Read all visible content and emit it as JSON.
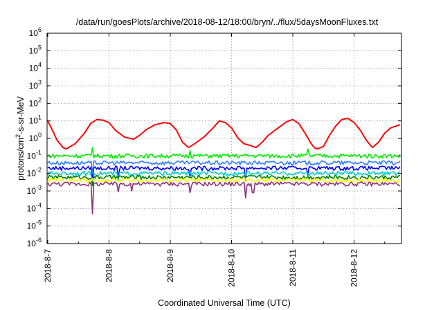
{
  "chart_data": {
    "type": "line",
    "title": "/data/run/goesPlots/archive/2018-08-12/18:00/bryn/../flux/5daysMoonFluxes.txt",
    "xlabel": "Coordinated Universal Time (UTC)",
    "ylabel": "protons/cm2-s-sr-MeV",
    "ylabel_parts": [
      "protons/cm",
      "2",
      "-s-sr-MeV"
    ],
    "y_scale": "log",
    "ylim": [
      1e-06,
      1000000.0
    ],
    "y_tick_exponents": [
      -6,
      -5,
      -4,
      -3,
      -2,
      -1,
      0,
      1,
      2,
      3,
      4,
      5,
      6
    ],
    "y_tick_base": "10",
    "xlim": [
      "2018-08-07",
      "2018-08-12 18:00"
    ],
    "x_tick_labels": [
      "2018-8-7",
      "2018-8-8",
      "2018-8-9",
      "2018-8-10",
      "2018-8-11",
      "2018-8-12"
    ],
    "grid": true,
    "series": [
      {
        "color": "#ff0000",
        "x_days": [
          0.0,
          0.1,
          0.15,
          0.25,
          0.3,
          0.45,
          0.6,
          0.7,
          0.8,
          0.9,
          1.0,
          1.1,
          1.25,
          1.4,
          1.5,
          1.6,
          1.75,
          1.9,
          2.0,
          2.1,
          2.2,
          2.3,
          2.4,
          2.55,
          2.7,
          2.8,
          2.9,
          3.0,
          3.1,
          3.2,
          3.3,
          3.4,
          3.5,
          3.6,
          3.8,
          3.9,
          4.0,
          4.1,
          4.2,
          4.3,
          4.35,
          4.4,
          4.5,
          4.6,
          4.7,
          4.8,
          4.9,
          5.0,
          5.1,
          5.2,
          5.3,
          5.4,
          5.5,
          5.6,
          5.75
        ],
        "values": [
          10,
          2,
          0.8,
          0.3,
          0.25,
          0.5,
          2,
          7,
          12,
          11,
          8,
          3,
          1.2,
          0.9,
          1.5,
          3,
          6,
          8,
          7,
          3,
          0.6,
          0.3,
          0.5,
          1.2,
          4,
          10,
          8,
          4,
          1.1,
          0.5,
          0.4,
          0.3,
          0.6,
          1.5,
          5,
          9,
          12,
          7,
          2,
          0.5,
          0.3,
          0.25,
          0.35,
          1.5,
          5,
          12,
          14,
          8,
          3,
          0.8,
          0.3,
          0.6,
          2,
          4,
          6
        ]
      },
      {
        "color": "#00ee00",
        "level": 0.1,
        "x_days": [
          0.72,
          2.33,
          4.25
        ],
        "spikes": [
          0.3,
          0.2,
          0.25
        ]
      },
      {
        "color": "#0000ff",
        "level": 0.02,
        "x_days": [
          0.72,
          1.15,
          2.33,
          3.22,
          4.25
        ],
        "spikes": [
          0.005,
          0.006,
          0.007,
          0.004,
          0.008
        ]
      },
      {
        "color": "#2a7fff",
        "level": 0.04,
        "x_days": [
          0.72
        ],
        "spikes": [
          0.01
        ]
      },
      {
        "color": "#00cfcf",
        "level": 0.01,
        "x_days": [
          0.72,
          1.15
        ],
        "spikes": [
          0.003,
          0.004
        ]
      },
      {
        "color": "#008000",
        "level": 0.006,
        "x_days": [
          0.72
        ],
        "spikes": [
          0.002
        ]
      },
      {
        "color": "#ffff00",
        "level": 0.004,
        "x_days": [],
        "spikes": []
      },
      {
        "color": "#8b2f7a",
        "level": 0.0025,
        "x_days": [
          0.72,
          1.15,
          1.38,
          2.33,
          3.22,
          3.35
        ],
        "spikes": [
          5e-05,
          0.0009,
          0.001,
          0.0008,
          0.0004,
          0.0008
        ]
      }
    ]
  }
}
